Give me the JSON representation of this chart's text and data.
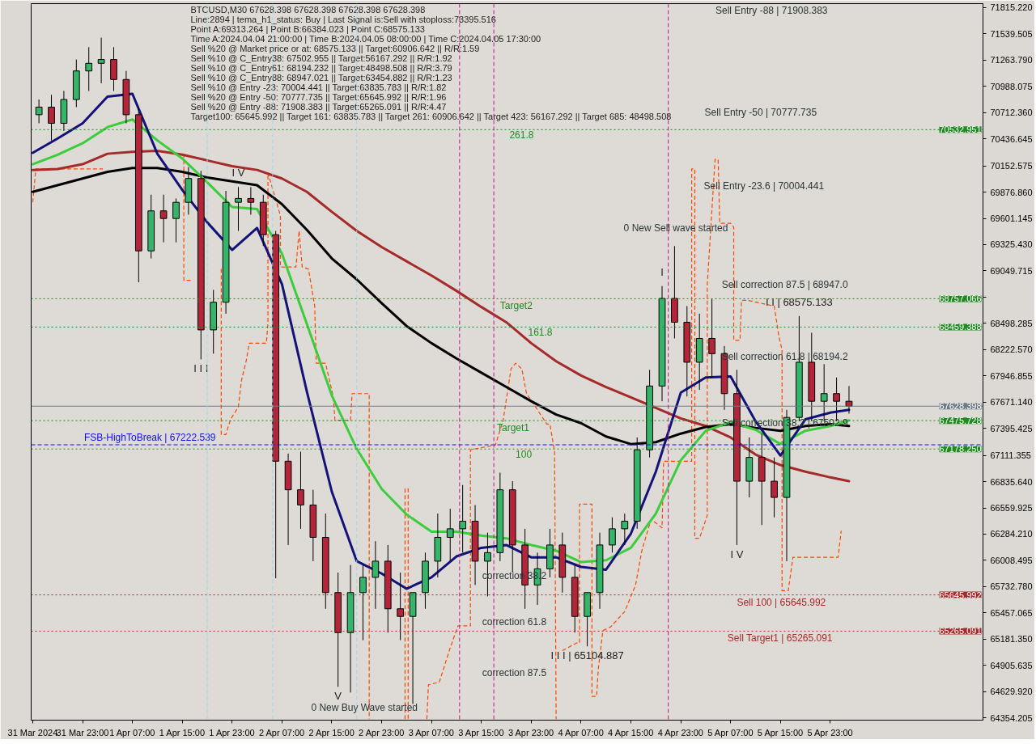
{
  "chart_data": {
    "type": "candlestick",
    "x": [
      "2024-03-31T16:00",
      "2024-03-31T18:00",
      "2024-03-31T20:00",
      "2024-03-31T22:00",
      "2024-04-01T00:00",
      "2024-04-01T02:00",
      "2024-04-01T04:00",
      "2024-04-01T06:00",
      "2024-04-01T08:00",
      "2024-04-01T10:00",
      "2024-04-01T12:00",
      "2024-04-01T14:00",
      "2024-04-01T16:00",
      "2024-04-01T18:00",
      "2024-04-01T20:00",
      "2024-04-01T22:00",
      "2024-04-02T00:00",
      "2024-04-02T02:00",
      "2024-04-02T04:00",
      "2024-04-02T06:00",
      "2024-04-02T08:00",
      "2024-04-02T10:00",
      "2024-04-02T12:00",
      "2024-04-02T14:00",
      "2024-04-02T16:00",
      "2024-04-02T18:00",
      "2024-04-02T20:00",
      "2024-04-02T22:00",
      "2024-04-03T00:00",
      "2024-04-03T02:00",
      "2024-04-03T04:00",
      "2024-04-03T06:00",
      "2024-04-03T08:00",
      "2024-04-03T10:00",
      "2024-04-03T12:00",
      "2024-04-03T14:00",
      "2024-04-03T16:00",
      "2024-04-03T18:00",
      "2024-04-03T20:00",
      "2024-04-03T22:00",
      "2024-04-04T00:00",
      "2024-04-04T02:00",
      "2024-04-04T04:00",
      "2024-04-04T06:00",
      "2024-04-04T08:00",
      "2024-04-04T10:00",
      "2024-04-04T12:00",
      "2024-04-04T14:00",
      "2024-04-04T16:00",
      "2024-04-04T18:00",
      "2024-04-04T20:00",
      "2024-04-04T22:00",
      "2024-04-05T00:00",
      "2024-04-05T02:00",
      "2024-04-05T04:00",
      "2024-04-05T06:00",
      "2024-04-05T08:00",
      "2024-04-05T10:00",
      "2024-04-05T12:00",
      "2024-04-05T14:00",
      "2024-04-05T16:00",
      "2024-04-05T18:00",
      "2024-04-05T20:00",
      "2024-04-05T22:00",
      "2024-04-06T00:00",
      "2024-04-06T02:00"
    ],
    "ohlc": [
      [
        70690,
        70850,
        70600,
        70770
      ],
      [
        70770,
        70900,
        70420,
        70600
      ],
      [
        70600,
        70940,
        70520,
        70850
      ],
      [
        70850,
        71270,
        70770,
        71150
      ],
      [
        71150,
        71400,
        70940,
        71230
      ],
      [
        71230,
        71500,
        71020,
        71270
      ],
      [
        71270,
        71400,
        70940,
        71060
      ],
      [
        71060,
        71150,
        70600,
        70690
      ],
      [
        70690,
        70770,
        68930,
        69260
      ],
      [
        69260,
        69850,
        69180,
        69680
      ],
      [
        69680,
        69850,
        69350,
        69600
      ],
      [
        69600,
        69810,
        69350,
        69770
      ],
      [
        69770,
        70140,
        69640,
        70020
      ],
      [
        70020,
        70100,
        68120,
        68430
      ],
      [
        68430,
        68850,
        68180,
        68720
      ],
      [
        68720,
        69890,
        68600,
        69770
      ],
      [
        69770,
        69930,
        69470,
        69810
      ],
      [
        69810,
        69930,
        69640,
        69770
      ],
      [
        69770,
        69850,
        69310,
        69430
      ],
      [
        69430,
        69470,
        65820,
        67050
      ],
      [
        67050,
        67130,
        66170,
        66750
      ],
      [
        66750,
        67150,
        66340,
        66590
      ],
      [
        66590,
        66750,
        66000,
        66250
      ],
      [
        66250,
        66500,
        65500,
        65670
      ],
      [
        65670,
        65880,
        64680,
        65250
      ],
      [
        65250,
        65960,
        64620,
        65670
      ],
      [
        65670,
        65960,
        65170,
        65830
      ],
      [
        65830,
        66210,
        65500,
        66000
      ],
      [
        66000,
        66170,
        65250,
        65500
      ],
      [
        65500,
        65880,
        65170,
        65420
      ],
      [
        65420,
        65670,
        64500,
        65670
      ],
      [
        65670,
        66090,
        65500,
        66000
      ],
      [
        66000,
        66500,
        65830,
        66250
      ],
      [
        66250,
        66550,
        66000,
        66340
      ],
      [
        66340,
        66800,
        66090,
        66420
      ],
      [
        66420,
        66590,
        65750,
        66000
      ],
      [
        66000,
        66300,
        65630,
        66090
      ],
      [
        66090,
        66930,
        66000,
        66750
      ],
      [
        66750,
        66840,
        65880,
        66170
      ],
      [
        66170,
        66340,
        65500,
        65750
      ],
      [
        65750,
        66090,
        65540,
        65920
      ],
      [
        65920,
        66340,
        65830,
        66170
      ],
      [
        66170,
        66300,
        65670,
        65830
      ],
      [
        65830,
        65960,
        65250,
        65420
      ],
      [
        65420,
        65670,
        65104.887,
        65670
      ],
      [
        65670,
        66300,
        65500,
        66170
      ],
      [
        66170,
        66460,
        66090,
        66340
      ],
      [
        66340,
        66500,
        66170,
        66420
      ],
      [
        66420,
        67300,
        66340,
        67170
      ],
      [
        67170,
        68010,
        67090,
        67840
      ],
      [
        67840,
        68890,
        67680,
        68760
      ],
      [
        68760,
        69310,
        68340,
        68510
      ],
      [
        68510,
        68680,
        67730,
        68090
      ],
      [
        68090,
        68600,
        67800,
        68340
      ],
      [
        68340,
        68760,
        67930,
        68180
      ],
      [
        68180,
        68260,
        67590,
        67760
      ],
      [
        67760,
        68010,
        66170,
        66840
      ],
      [
        66840,
        67300,
        66670,
        67090
      ],
      [
        67090,
        67340,
        66380,
        66840
      ],
      [
        66840,
        67090,
        66460,
        66670
      ],
      [
        66670,
        67590,
        66000,
        67510
      ],
      [
        67510,
        68575.133,
        67470,
        68090
      ],
      [
        68090,
        68400,
        67470,
        67680
      ],
      [
        67680,
        68070,
        67470,
        67760
      ],
      [
        67760,
        67930,
        67470,
        67680
      ],
      [
        67680,
        67840,
        67550,
        67628.398
      ]
    ],
    "colors": [
      "#36b56a",
      "#b3263a",
      "#36b56a",
      "#36b56a",
      "#36b56a",
      "#36b56a",
      "#b3263a",
      "#b3263a",
      "#b3263a",
      "#36b56a",
      "#b3263a",
      "#36b56a",
      "#36b56a",
      "#b3263a",
      "#36b56a",
      "#36b56a",
      "#36b56a",
      "#b3263a",
      "#b3263a",
      "#b3263a",
      "#b3263a",
      "#b3263a",
      "#b3263a",
      "#b3263a",
      "#b3263a",
      "#36b56a",
      "#36b56a",
      "#36b56a",
      "#b3263a",
      "#b3263a",
      "#36b56a",
      "#36b56a",
      "#36b56a",
      "#36b56a",
      "#36b56a",
      "#b3263a",
      "#36b56a",
      "#36b56a",
      "#b3263a",
      "#b3263a",
      "#36b56a",
      "#36b56a",
      "#b3263a",
      "#b3263a",
      "#36b56a",
      "#36b56a",
      "#36b56a",
      "#36b56a",
      "#36b56a",
      "#36b56a",
      "#36b56a",
      "#b3263a",
      "#b3263a",
      "#36b56a",
      "#b3263a",
      "#b3263a",
      "#b3263a",
      "#36b56a",
      "#b3263a",
      "#b3263a",
      "#36b56a",
      "#36b56a",
      "#b3263a",
      "#36b56a",
      "#b3263a",
      "#b3263a"
    ],
    "series": [
      {
        "type": "line",
        "color": "#ff4500",
        "line_style": "dashed",
        "x": [
          "2024-03-31T15:00",
          "2024-03-31T15:30",
          "2024-04-01T02:15"
        ],
        "values": [
          69770,
          70120,
          70120
        ]
      },
      {
        "type": "line",
        "color": "#ff4500",
        "line_style": "dashed",
        "x": [
          "2024-04-01T15:15",
          "2024-04-01T15:15",
          "2024-04-01T16:45"
        ],
        "values": [
          70280,
          68950,
          68950
        ]
      },
      {
        "type": "line",
        "color": "#ff4500",
        "line_style": "dashed",
        "x": [
          "2024-04-01T21:15",
          "2024-04-01T21:15",
          "2024-04-01T22:00",
          "2024-04-01T22:45",
          "2024-04-02T00:00",
          "2024-04-02T00:30",
          "2024-04-02T01:15",
          "2024-04-02T01:45",
          "2024-04-02T04:30",
          "2024-04-02T04:45",
          "2024-04-02T04:45",
          "2024-04-02T06:45",
          "2024-04-02T06:45",
          "2024-04-02T09:15",
          "2024-04-02T09:45",
          "2024-04-02T10:15",
          "2024-04-02T11:15",
          "2024-04-02T12:15",
          "2024-04-02T12:30",
          "2024-04-02T14:00",
          "2024-04-02T15:15",
          "2024-04-02T15:30",
          "2024-04-02T18:00",
          "2024-04-02T18:15",
          "2024-04-02T21:00",
          "2024-04-02T21:00"
        ],
        "values": [
          69070,
          67330,
          67330,
          67490,
          67620,
          67900,
          68100,
          68290,
          68290,
          68500,
          70080,
          69630,
          69090,
          69090,
          69470,
          69090,
          69070,
          68680,
          68080,
          68080,
          67720,
          67480,
          67480,
          67760,
          67760,
          64340
        ]
      },
      {
        "type": "line",
        "color": "#ff4500",
        "line_style": "dashed",
        "x": [
          "2024-04-03T02:45",
          "2024-04-03T02:45",
          "2024-04-03T03:15",
          "2024-04-03T03:15"
        ],
        "values": [
          64340,
          66760,
          66760,
          64340
        ]
      },
      {
        "type": "line",
        "color": "#ff4500",
        "line_style": "dashed",
        "x": [
          "2024-04-03T06:15",
          "2024-04-03T06:30",
          "2024-04-03T08:15",
          "2024-04-03T10:00",
          "2024-04-03T11:15",
          "2024-04-03T13:15",
          "2024-04-03T13:15",
          "2024-04-03T17:15",
          "2024-04-03T18:30",
          "2024-04-03T19:45",
          "2024-04-03T20:30",
          "2024-04-03T21:30",
          "2024-04-03T22:15",
          "2024-04-03T23:30",
          "2024-04-04T01:30",
          "2024-04-04T02:00",
          "2024-04-04T02:45",
          "2024-04-04T03:00"
        ],
        "values": [
          64340,
          64700,
          64730,
          65090,
          65320,
          65320,
          67170,
          67220,
          67480,
          68020,
          68080,
          68020,
          67760,
          67640,
          67440,
          67440,
          67150,
          64340
        ]
      },
      {
        "type": "line",
        "color": "#ff4500",
        "line_style": "dashed",
        "x": [
          "2024-04-04T04:00",
          "2024-04-04T06:15",
          "2024-04-04T06:45",
          "2024-04-04T06:45",
          "2024-04-04T08:45",
          "2024-04-04T08:45",
          "2024-04-04T09:30",
          "2024-04-04T09:45",
          "2024-04-04T10:30",
          "2024-04-04T11:45",
          "2024-04-04T14:00",
          "2024-04-04T15:45",
          "2024-04-04T16:45",
          "2024-04-04T18:15",
          "2024-04-04T20:00",
          "2024-04-04T20:15",
          "2024-04-05T00:45",
          "2024-04-05T00:45",
          "2024-04-05T01:15",
          "2024-04-05T01:15",
          "2024-04-05T02:00",
          "2024-04-05T03:15",
          "2024-04-05T03:15",
          "2024-04-05T04:30",
          "2024-04-05T05:00",
          "2024-04-05T05:15",
          "2024-04-05T07:00",
          "2024-04-05T07:30",
          "2024-04-05T07:30",
          "2024-04-05T08:30",
          "2024-04-05T08:45",
          "2024-04-05T09:45",
          "2024-04-05T14:00",
          "2024-04-05T14:45",
          "2024-04-05T15:15",
          "2024-04-05T15:15",
          "2024-04-05T16:15",
          "2024-04-05T17:00",
          "2024-04-06T00:15",
          "2024-04-06T00:45"
        ],
        "values": [
          65060,
          65140,
          65140,
          66600,
          66600,
          64580,
          64580,
          64860,
          65270,
          65310,
          65470,
          65750,
          66110,
          66440,
          66350,
          67050,
          67050,
          70120,
          70120,
          66240,
          66240,
          66480,
          68900,
          70220,
          70220,
          69550,
          69550,
          69510,
          68320,
          68320,
          68740,
          68740,
          68680,
          68360,
          68220,
          65690,
          65690,
          66040,
          66040,
          66320
        ]
      },
      {
        "type": "line",
        "color": "#a52a2a",
        "x": [
          "2024-03-31T15:00",
          "2024-03-31T19:00",
          "2024-03-31T23:00",
          "2024-04-01T03:00",
          "2024-04-01T07:00",
          "2024-04-01T11:00",
          "2024-04-01T15:00",
          "2024-04-01T19:00",
          "2024-04-01T23:00",
          "2024-04-02T03:00",
          "2024-04-02T07:00",
          "2024-04-02T11:00",
          "2024-04-02T15:00",
          "2024-04-02T19:00",
          "2024-04-02T23:00",
          "2024-04-03T03:00",
          "2024-04-03T07:00",
          "2024-04-03T11:00",
          "2024-04-03T15:00",
          "2024-04-03T19:00",
          "2024-04-03T23:00",
          "2024-04-04T03:00",
          "2024-04-04T07:00",
          "2024-04-04T11:00",
          "2024-04-04T15:00",
          "2024-04-04T19:00",
          "2024-04-04T23:00",
          "2024-04-05T03:00",
          "2024-04-05T07:00",
          "2024-04-05T11:00",
          "2024-04-05T15:00",
          "2024-04-05T19:00",
          "2024-04-05T23:00",
          "2024-04-06T02:00"
        ],
        "values": [
          70110,
          70120,
          70170,
          70280,
          70300,
          70310,
          70270,
          70210,
          70150,
          70110,
          70020,
          69880,
          69670,
          69470,
          69300,
          69150,
          69000,
          68840,
          68670,
          68510,
          68290,
          68100,
          67950,
          67830,
          67720,
          67610,
          67500,
          67420,
          67300,
          67120,
          67010,
          66940,
          66880,
          66840
        ]
      },
      {
        "type": "line",
        "color": "#000000",
        "x": [
          "2024-03-31T15:00",
          "2024-03-31T19:00",
          "2024-03-31T23:00",
          "2024-04-01T03:00",
          "2024-04-01T07:00",
          "2024-04-01T11:00",
          "2024-04-01T15:00",
          "2024-04-01T19:00",
          "2024-04-01T23:00",
          "2024-04-02T03:00",
          "2024-04-02T07:00",
          "2024-04-02T11:00",
          "2024-04-02T15:00",
          "2024-04-02T19:00",
          "2024-04-02T23:00",
          "2024-04-03T03:00",
          "2024-04-03T07:00",
          "2024-04-03T11:00",
          "2024-04-03T15:00",
          "2024-04-03T19:00",
          "2024-04-03T23:00",
          "2024-04-04T03:00",
          "2024-04-04T07:00",
          "2024-04-04T11:00",
          "2024-04-04T15:00",
          "2024-04-04T19:00",
          "2024-04-04T23:00",
          "2024-04-05T03:00",
          "2024-04-05T07:00",
          "2024-04-05T11:00",
          "2024-04-05T15:00",
          "2024-04-05T19:00",
          "2024-04-05T23:00",
          "2024-04-06T02:00"
        ],
        "values": [
          69880,
          69950,
          70020,
          70090,
          70130,
          70130,
          70090,
          70030,
          69990,
          69950,
          69750,
          69480,
          69180,
          68960,
          68710,
          68470,
          68290,
          68130,
          67980,
          67830,
          67680,
          67540,
          67450,
          67310,
          67230,
          67250,
          67340,
          67410,
          67440,
          67400,
          67370,
          67420,
          67440,
          67420
        ]
      },
      {
        "type": "line",
        "color": "#3ccc3c",
        "x": [
          "2024-03-31T15:00",
          "2024-03-31T19:00",
          "2024-03-31T23:00",
          "2024-04-01T03:00",
          "2024-04-01T07:00",
          "2024-04-01T11:00",
          "2024-04-01T15:00",
          "2024-04-01T19:00",
          "2024-04-01T23:00",
          "2024-04-02T03:00",
          "2024-04-02T07:00",
          "2024-04-02T11:00",
          "2024-04-02T15:00",
          "2024-04-02T19:00",
          "2024-04-02T23:00",
          "2024-04-03T03:00",
          "2024-04-03T07:00",
          "2024-04-03T11:00",
          "2024-04-03T15:00",
          "2024-04-03T19:00",
          "2024-04-03T23:00",
          "2024-04-04T03:00",
          "2024-04-04T07:00",
          "2024-04-04T11:00",
          "2024-04-04T15:00",
          "2024-04-04T19:00",
          "2024-04-04T23:00",
          "2024-04-05T03:00",
          "2024-04-05T07:00",
          "2024-04-05T11:00",
          "2024-04-05T15:00",
          "2024-04-05T19:00",
          "2024-04-05T23:00",
          "2024-04-06T02:00"
        ],
        "values": [
          70170,
          70270,
          70390,
          70560,
          70640,
          70420,
          70230,
          69980,
          69720,
          69700,
          69230,
          68490,
          67740,
          67180,
          66760,
          66490,
          66310,
          66310,
          66270,
          66240,
          66170,
          66110,
          65990,
          66010,
          66140,
          66500,
          67060,
          67370,
          67460,
          67380,
          67230,
          67370,
          67420,
          67480
        ]
      },
      {
        "type": "line",
        "color": "#12127a",
        "x": [
          "2024-03-31T15:00",
          "2024-03-31T19:00",
          "2024-03-31T23:00",
          "2024-04-01T03:00",
          "2024-04-01T07:00",
          "2024-04-01T11:00",
          "2024-04-01T15:00",
          "2024-04-01T19:00",
          "2024-04-01T23:00",
          "2024-04-02T03:00",
          "2024-04-02T07:00",
          "2024-04-02T11:00",
          "2024-04-02T15:00",
          "2024-04-02T19:00",
          "2024-04-02T23:00",
          "2024-04-03T03:00",
          "2024-04-03T07:00",
          "2024-04-03T11:00",
          "2024-04-03T15:00",
          "2024-04-03T19:00",
          "2024-04-03T23:00",
          "2024-04-04T03:00",
          "2024-04-04T07:00",
          "2024-04-04T11:00",
          "2024-04-04T15:00",
          "2024-04-04T19:00",
          "2024-04-04T23:00",
          "2024-04-05T03:00",
          "2024-04-05T07:00",
          "2024-04-05T11:00",
          "2024-04-05T15:00",
          "2024-04-05T19:00",
          "2024-04-05T23:00",
          "2024-04-06T02:00"
        ],
        "values": [
          70290,
          70440,
          70600,
          70880,
          70910,
          70280,
          69900,
          69560,
          69270,
          69500,
          68910,
          67780,
          66730,
          66000,
          65870,
          65710,
          65830,
          66050,
          66140,
          66170,
          66040,
          66040,
          65940,
          65910,
          66290,
          66940,
          67770,
          67930,
          67940,
          67470,
          67110,
          67490,
          67560,
          67590
        ]
      }
    ],
    "xlim": [
      "2024-03-31T14:45",
      "2024-04-06T23:30"
    ],
    "xticks": [
      {
        "value": "2024-03-31T15:00",
        "label": "31 Mar 2024"
      },
      {
        "value": "2024-03-31T23:00",
        "label": "31 Mar 23:00"
      },
      {
        "value": "2024-04-01T07:00",
        "label": "1 Apr 07:00"
      },
      {
        "value": "2024-04-01T15:00",
        "label": "1 Apr 15:00"
      },
      {
        "value": "2024-04-01T23:00",
        "label": "1 Apr 23:00"
      },
      {
        "value": "2024-04-02T07:00",
        "label": "2 Apr 07:00"
      },
      {
        "value": "2024-04-02T15:00",
        "label": "2 Apr 15:00"
      },
      {
        "value": "2024-04-02T23:00",
        "label": "2 Apr 23:00"
      },
      {
        "value": "2024-04-03T07:00",
        "label": "3 Apr 07:00"
      },
      {
        "value": "2024-04-03T15:00",
        "label": "3 Apr 15:00"
      },
      {
        "value": "2024-04-03T23:00",
        "label": "3 Apr 23:00"
      },
      {
        "value": "2024-04-04T07:00",
        "label": "4 Apr 07:00"
      },
      {
        "value": "2024-04-04T15:00",
        "label": "4 Apr 15:00"
      },
      {
        "value": "2024-04-04T23:00",
        "label": "4 Apr 23:00"
      },
      {
        "value": "2024-04-05T07:00",
        "label": "5 Apr 07:00"
      },
      {
        "value": "2024-04-05T15:00",
        "label": "5 Apr 15:00"
      },
      {
        "value": "2024-04-05T23:00",
        "label": "5 Apr 23:00"
      }
    ],
    "ylim": [
      64330,
      71857
    ],
    "yticks": [
      {
        "value": 71815.22,
        "label": "71815.220"
      },
      71539.505,
      {
        "value": 71263.79,
        "label": "71263.790"
      },
      70988.075,
      {
        "value": 70712.36,
        "label": "70712.360"
      },
      70436.645,
      70152.575,
      {
        "value": 69876.86,
        "label": "69876.860"
      },
      69601.145,
      {
        "value": 69325.43,
        "label": "69325.430"
      },
      69049.715,
      {
        "value": 68774.0,
        "label": null
      },
      68498.285,
      {
        "value": 68222.57,
        "label": "68222.570"
      },
      67946.855,
      {
        "value": 67671.14,
        "label": "67671.140"
      },
      67395.425,
      67111.355,
      {
        "value": 66835.64,
        "label": "66835.640"
      },
      66559.925,
      {
        "value": 66284.21,
        "label": "66284.210"
      },
      66008.495,
      {
        "value": 65732.78,
        "label": "65732.780"
      },
      65457.065,
      {
        "value": 65181.35,
        "label": "65181.350"
      },
      64905.635,
      {
        "value": 64629.92,
        "label": "64629.920"
      },
      64354.205
    ],
    "ref_lines": [
      {
        "axis": "y",
        "value": 70532.951,
        "label": "70532.951",
        "color": "#1f8a1f",
        "line_style": "dotted"
      },
      {
        "axis": "y",
        "value": 68757.066,
        "label": "68757.066",
        "color": "#1f8a1f",
        "line_style": "dotted"
      },
      {
        "axis": "y",
        "value": 68459.388,
        "label": "68459.388",
        "color": "#1f8a1f",
        "line_style": "dotted"
      },
      {
        "axis": "y",
        "value": 67628.398,
        "label": "67628.398",
        "color": "#6e7a86",
        "line_style": "solid"
      },
      {
        "axis": "y",
        "value": 67475.728,
        "label": "67475.728",
        "color": "#1f8a1f",
        "line_style": "dotted"
      },
      {
        "axis": "y",
        "value": 67222.539,
        "color": "#1010e0",
        "line_style": "dashed"
      },
      {
        "axis": "y",
        "value": 67178.25,
        "label": "67178.250",
        "color": "#1f8a1f",
        "line_style": "dotted"
      },
      {
        "axis": "y",
        "value": 65645.992,
        "label": "65645.992",
        "color": "#a52a2a",
        "line_style": "dotted"
      },
      {
        "axis": "y",
        "value": 65265.091,
        "label": "65265.091",
        "color": "#a52a2a",
        "line_style": "dotted"
      },
      {
        "axis": "x",
        "value": "2024-04-01T19:00",
        "color": "#9fd8e6",
        "line_style": "dashed"
      },
      {
        "axis": "x",
        "value": "2024-04-02T05:30",
        "color": "#9fd8e6",
        "line_style": "dashed"
      },
      {
        "axis": "x",
        "value": "2024-04-02T19:00",
        "color": "#9fd8e6",
        "line_style": "dashed"
      },
      {
        "axis": "x",
        "value": "2024-04-03T11:30",
        "color": "#c0188a",
        "line_style": "dashed"
      },
      {
        "axis": "x",
        "value": "2024-04-03T17:00",
        "color": "#c0188a",
        "line_style": "dashed"
      },
      {
        "axis": "x",
        "value": "2024-04-04T21:00",
        "color": "#c0188a",
        "line_style": "dashed"
      }
    ],
    "annotations": [
      "BTCUSD,M30 67628.398 67628.398 67628.398 67628.398",
      "Line:2894 | tema_h1_status: Buy | Last Signal is:Sell with stoploss:73395.516",
      "Point A:69313.264 | Point B:66384.023 | Point C:68575.133",
      "Time A:2024.04.04 21:00:00 | Time B:2024.04.05 08:00:00 | Time C:2024.04.05 17:30:00",
      "Sell %20 @ Market price or at: 68575.133 || Target:60906.642 || R/R:1.59",
      "Sell %10 @ C_Entry38: 67502.955 || Target:56167.292 || R/R:1.92",
      "Sell %10 @ C_Entry61: 68194.232 || Target:48498.508 || R/R:3.79",
      "Sell %10 @ C_Entry88: 68947.021 || Target:63454.882 || R/R:1.23",
      "Sell %10 @ Entry -23: 70004.441 || Target:63835.783 || R/R:1.82",
      "Sell %20 @ Entry -50: 70777.735 || Target:65645.992 || R/R:1.96",
      "Sell %20 @ Entry -88: 71908.383 || Target:65265.091 || R/R:4.47",
      "Target100: 65645.992 || Target 161: 63835.783 || Target 261: 60906.642 || Target 423: 56167.292 || Target 685: 48498.508",
      "Sell Entry -88 | 71908.383",
      "Sell Entry -50 | 70777.735",
      "Sell Entry -23.6 | 70004.441",
      "0 New Sell wave started",
      "Sell correction 87.5 | 68947.0",
      "Sell correction 61.8 | 68194.2",
      "Sell correction 38.2 | 67502.9",
      "correction 38.2",
      "correction 61.8",
      "correction 87.5",
      "0 New Buy Wave started",
      {
        "text": "261.8",
        "x": "2024-04-03T19:30",
        "y": 70532.951
      },
      {
        "text": "Target2",
        "x": "2024-04-03T18:00",
        "y": 68757.066
      },
      {
        "text": "161.8",
        "x": "2024-04-03T22:30",
        "y": 68459.388
      },
      {
        "text": "Target1",
        "x": "2024-04-03T17:30",
        "y": 67475.728
      },
      {
        "text": "FSB-HighToBreak | 67222.539",
        "x": "2024-03-31T23:15",
        "y": 67222.539
      },
      {
        "text": "100",
        "x": "2024-04-03T20:30",
        "y": 67178.25
      },
      {
        "text": "Sell 100 | 65645.992",
        "x": "2024-04-05T08:00",
        "y": 65645.992
      },
      {
        "text": "Sell Target1 | 65265.091",
        "x": "2024-04-05T06:30",
        "y": 65265.091
      },
      {
        "text": "I V",
        "x": "2024-04-02T00:00",
        "y": 69930
      },
      {
        "text": "I I I",
        "x": "2024-04-01T18:00",
        "y": 68120
      },
      {
        "text": "V",
        "x": "2024-04-02T16:00",
        "y": 64680
      },
      {
        "text": "I",
        "x": "2024-04-04T20:00",
        "y": 68890
      },
      {
        "text": "I V",
        "x": "2024-04-05T08:00",
        "y": 66170
      },
      {
        "text": "I I | 68575.133",
        "x": "2024-04-05T18:00",
        "y": 68575.133
      },
      {
        "text": "I I I | 65104.887",
        "x": "2024-04-04T08:00",
        "y": 65104.887
      }
    ]
  }
}
